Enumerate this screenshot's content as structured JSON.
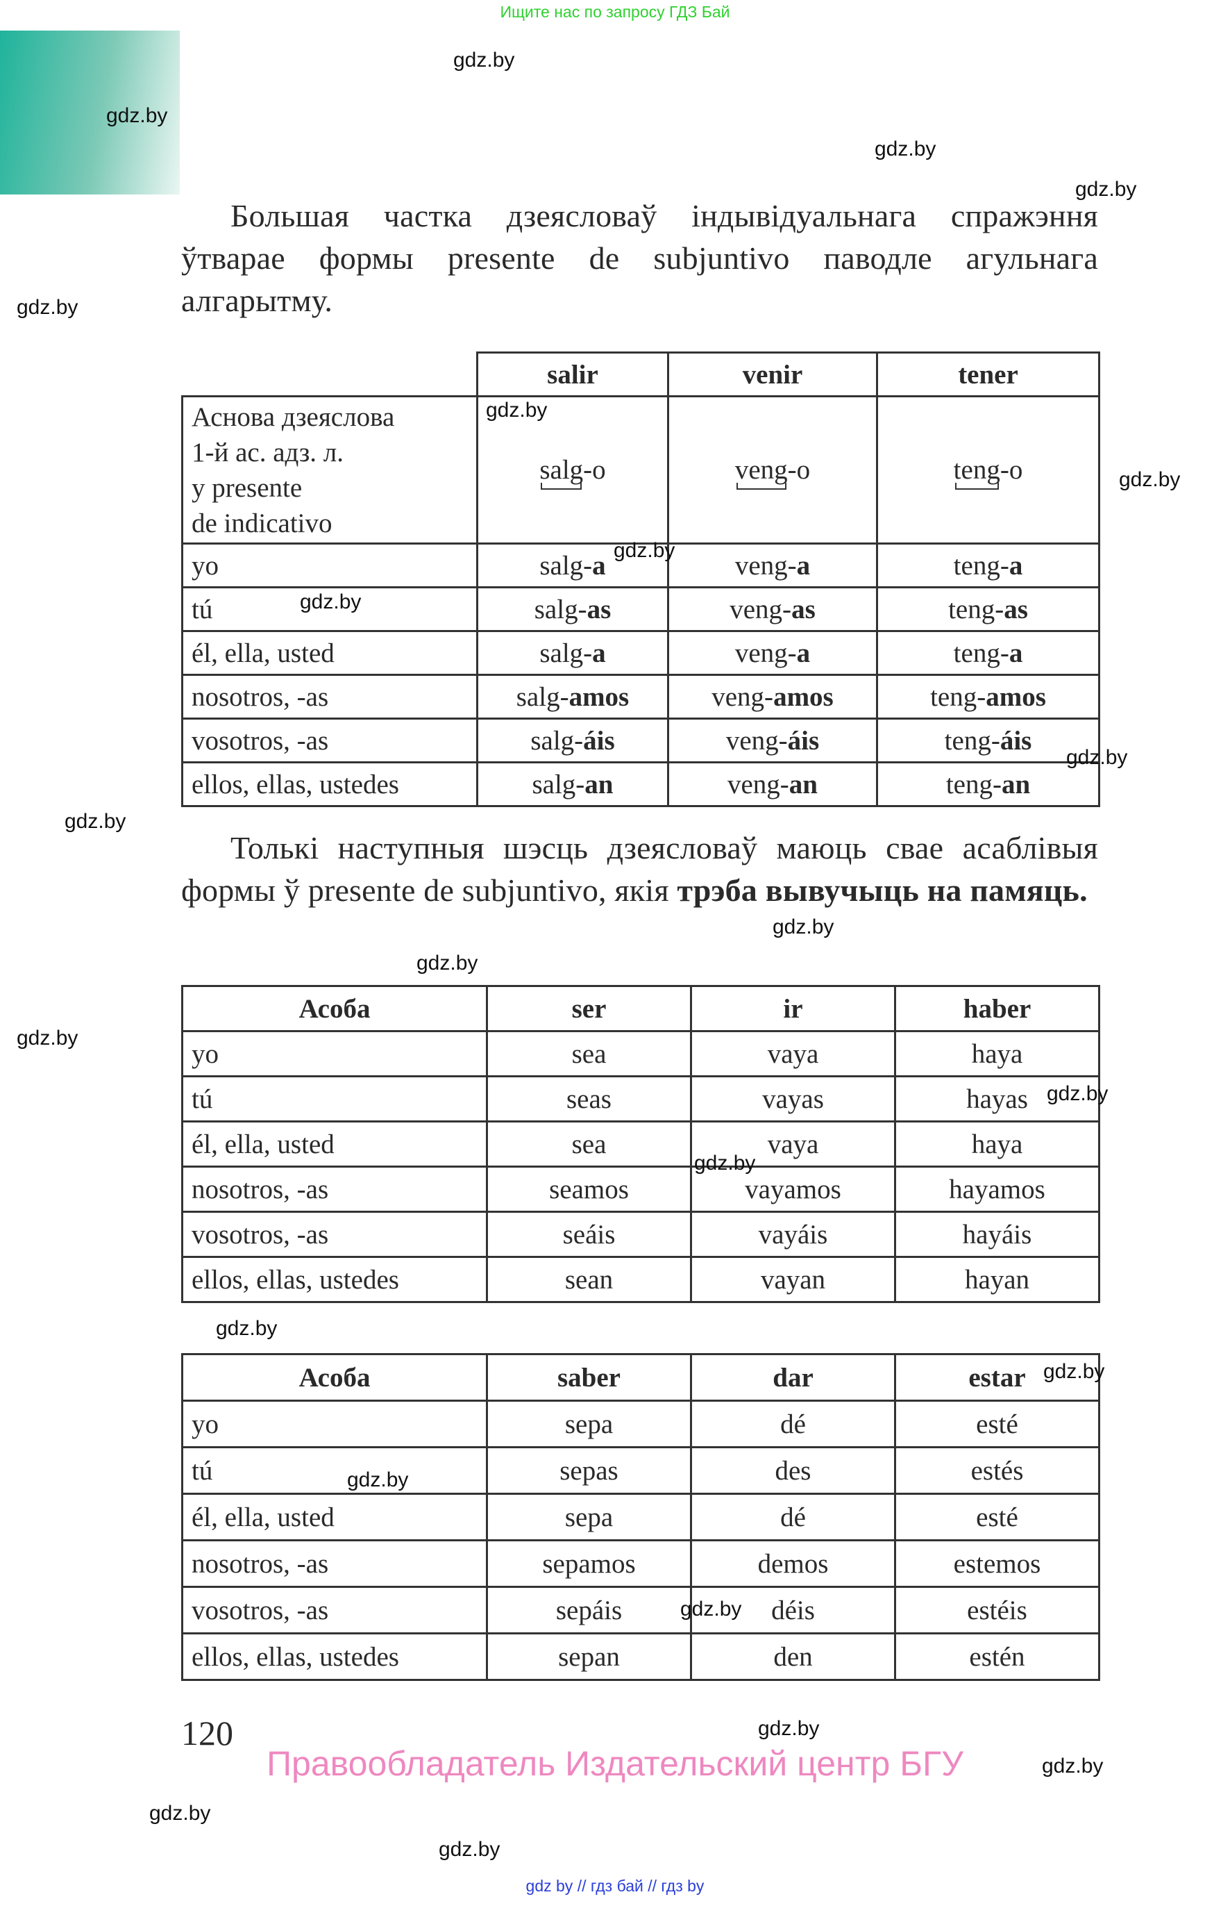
{
  "top_note": "Ищите нас по запросу ГДЗ Бай",
  "watermark": "gdz.by",
  "paragraph1": "Большая частка дзеясловаў індывідуальнага спражэння ўтварае формы presente de subjuntivo паводле агульнага алгарытму.",
  "paragraph2": {
    "normal": "Толькі наступныя шэсць дзеясловаў маюць свае асаблівыя формы ў presente de subjuntivo, якія ",
    "bold": "трэба вывучыць на памяць."
  },
  "table1": {
    "columns": [
      "salir",
      "venir",
      "tener"
    ],
    "stem_label": [
      "Аснова дзеяслова",
      "1-й ас. адз. л.",
      "y presente",
      "de indicativo"
    ],
    "stems": [
      {
        "stem": "salg",
        "ending": "-o"
      },
      {
        "stem": "veng",
        "ending": "-o"
      },
      {
        "stem": "teng",
        "ending": "-o"
      }
    ],
    "rows": [
      {
        "person": "yo",
        "forms": [
          [
            "salg-",
            "a"
          ],
          [
            "veng-",
            "a"
          ],
          [
            "teng-",
            "a"
          ]
        ]
      },
      {
        "person": "tú",
        "forms": [
          [
            "salg-",
            "as"
          ],
          [
            "veng-",
            "as"
          ],
          [
            "teng-",
            "as"
          ]
        ]
      },
      {
        "person": "él, ella, usted",
        "forms": [
          [
            "salg-",
            "a"
          ],
          [
            "veng-",
            "a"
          ],
          [
            "teng-",
            "a"
          ]
        ]
      },
      {
        "person": "nosotros, -as",
        "forms": [
          [
            "salg-",
            "amos"
          ],
          [
            "veng-",
            "amos"
          ],
          [
            "teng-",
            "amos"
          ]
        ]
      },
      {
        "person": "vosotros, -as",
        "forms": [
          [
            "salg-",
            "áis"
          ],
          [
            "veng-",
            "áis"
          ],
          [
            "teng-",
            "áis"
          ]
        ]
      },
      {
        "person": "ellos, ellas, ustedes",
        "forms": [
          [
            "salg-",
            "an"
          ],
          [
            "veng-",
            "an"
          ],
          [
            "teng-",
            "an"
          ]
        ]
      }
    ]
  },
  "table2": {
    "columns": [
      "Асоба",
      "ser",
      "ir",
      "haber"
    ],
    "rows": [
      [
        "yo",
        "sea",
        "vaya",
        "haya"
      ],
      [
        "tú",
        "seas",
        "vayas",
        "hayas"
      ],
      [
        "él, ella, usted",
        "sea",
        "vaya",
        "haya"
      ],
      [
        "nosotros, -as",
        "seamos",
        "vayamos",
        "hayamos"
      ],
      [
        "vosotros, -as",
        "seáis",
        "vayáis",
        "hayáis"
      ],
      [
        "ellos, ellas, ustedes",
        "sean",
        "vayan",
        "hayan"
      ]
    ]
  },
  "table3": {
    "columns": [
      "Асоба",
      "saber",
      "dar",
      "estar"
    ],
    "rows": [
      [
        "yo",
        "sepa",
        "dé",
        "esté"
      ],
      [
        "tú",
        "sepas",
        "des",
        "estés"
      ],
      [
        "él, ella, usted",
        "sepa",
        "dé",
        "esté"
      ],
      [
        "nosotros, -as",
        "sepamos",
        "demos",
        "estemos"
      ],
      [
        "vosotros, -as",
        "sepáis",
        "déis",
        "estéis"
      ],
      [
        "ellos, ellas, ustedes",
        "sepan",
        "den",
        "estén"
      ]
    ]
  },
  "page_number": "120",
  "rights_holder": "Правообладатель Издательский центр БГУ",
  "footer": "gdz by  //  гдз бай  //  гдз by",
  "colors": {
    "top_note": "#2fd12f",
    "rights": "#ee88c0",
    "footer": "#2a3fd8",
    "teal_block": "#1fb39b"
  }
}
